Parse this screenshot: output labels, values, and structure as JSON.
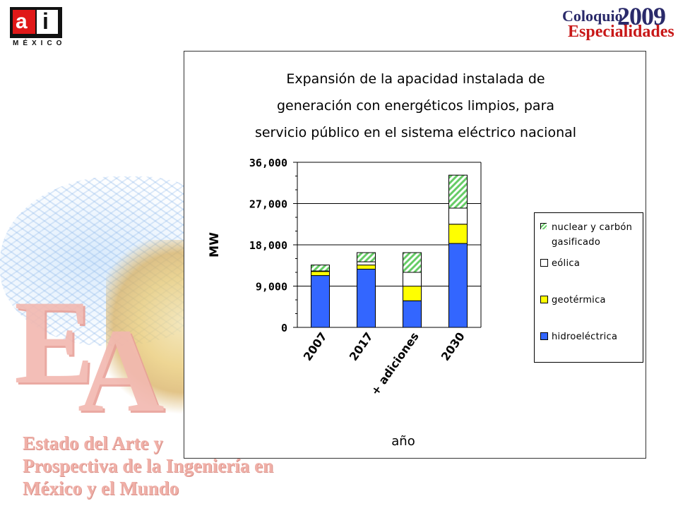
{
  "header": {
    "logo_left_main": "ai",
    "logo_left_sub": "MÉXICO",
    "logo_right_line1": "Coloquio",
    "logo_right_year": "2009",
    "logo_right_line2": "Especialidades"
  },
  "background": {
    "letters_1": "E",
    "letters_2": "A",
    "caption_lines": [
      "Estado del Arte y",
      "Prospectiva de la Ingeniería en",
      "México y el Mundo"
    ]
  },
  "chart_data": {
    "type": "bar",
    "stacked": true,
    "title_lines": [
      "Expansión de la apacidad instalada de",
      "generación con energéticos limpios, para",
      "servicio público en el sistema eléctrico nacional"
    ],
    "xlabel": "año",
    "ylabel": "MW",
    "categories": [
      "2007",
      "2017",
      "+ adiciones",
      "2030"
    ],
    "ylim": [
      0,
      36000
    ],
    "yticks": [
      0,
      9000,
      18000,
      27000,
      36000
    ],
    "ytick_labels": [
      "0",
      "9,000",
      "18,000",
      "27,000",
      "36,000"
    ],
    "grid": true,
    "legend_position": "right",
    "series": [
      {
        "name": "hidroeléctrica",
        "color": "#3366ff",
        "pattern": "solid",
        "values": [
          11300,
          12700,
          5800,
          18300
        ]
      },
      {
        "name": "geotérmica",
        "color": "#ffff00",
        "pattern": "solid",
        "values": [
          900,
          900,
          3200,
          4200
        ]
      },
      {
        "name": "eólica",
        "color": "#ffffff",
        "pattern": "solid",
        "values": [
          100,
          700,
          3000,
          3500
        ]
      },
      {
        "name": "nuclear y carbón gasificado",
        "color": "#66cc66",
        "pattern": "hatch",
        "values": [
          1300,
          2000,
          4300,
          7200
        ]
      }
    ],
    "legend_order": [
      "nuclear y carbón gasificado",
      "eólica",
      "geotérmica",
      "hidroeléctrica"
    ]
  }
}
